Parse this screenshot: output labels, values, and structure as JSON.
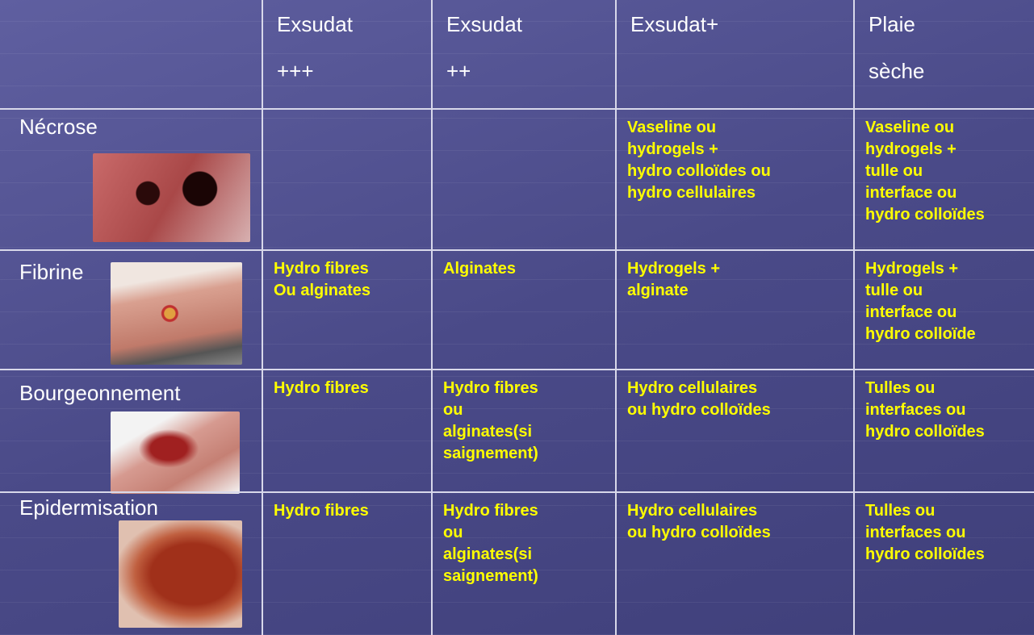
{
  "table": {
    "header": [
      [
        "Exsudat",
        "+++"
      ],
      [
        "Exsudat",
        "++"
      ],
      [
        "Exsudat+"
      ],
      [
        "Plaie",
        "sèche"
      ]
    ],
    "rows": [
      {
        "label": "Nécrose",
        "cells": [
          [],
          [],
          [
            "Vaseline ou",
            "hydrogels +",
            "hydro colloïdes ou",
            "hydro cellulaires"
          ],
          [
            "Vaseline ou",
            "hydrogels +",
            "tulle ou",
            "interface ou",
            "hydro colloïdes"
          ]
        ]
      },
      {
        "label": "Fibrine",
        "cells": [
          [
            "Hydro fibres",
            "Ou alginates"
          ],
          [
            "Alginates"
          ],
          [
            "Hydrogels +",
            "alginate"
          ],
          [
            "Hydrogels +",
            "tulle ou",
            "interface ou",
            "hydro colloïde"
          ]
        ]
      },
      {
        "label": "Bourgeonnement",
        "cells": [
          [
            "Hydro fibres"
          ],
          [
            "Hydro fibres",
            "ou",
            "alginates(si",
            "saignement)"
          ],
          [
            "Hydro cellulaires",
            "ou hydro colloïdes"
          ],
          [
            "Tulles ou",
            "interfaces ou",
            "hydro colloïdes"
          ]
        ]
      },
      {
        "label": "Epidermisation",
        "cells": [
          [
            "Hydro fibres"
          ],
          [
            "Hydro fibres",
            "ou",
            "alginates(si",
            "saignement)"
          ],
          [
            "Hydro cellulaires",
            "ou hydro colloïdes"
          ],
          [
            "Tulles ou",
            "interfaces ou",
            "hydro colloïdes"
          ]
        ]
      }
    ]
  }
}
